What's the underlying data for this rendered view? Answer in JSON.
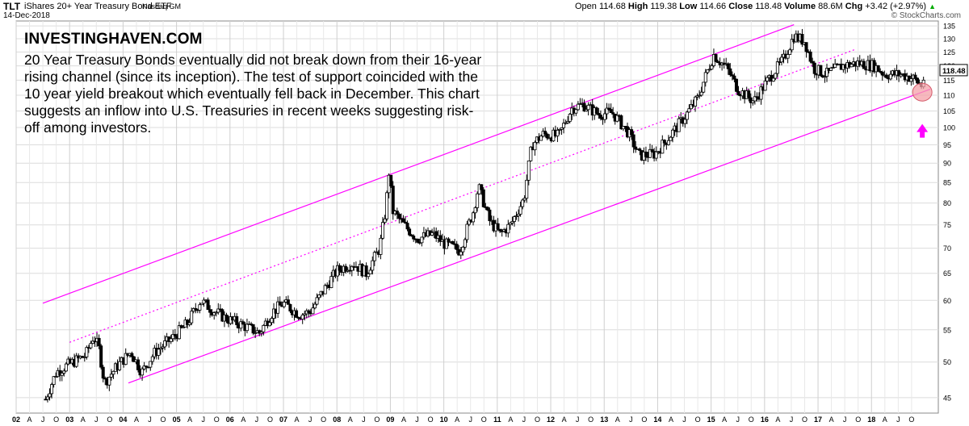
{
  "header": {
    "symbol": "TLT",
    "name": "iShares 20+ Year Treasury Bond ETF",
    "exchange": "Nasdaq GM",
    "date": "14-Dec-2018",
    "open_label": "Open",
    "open": "114.68",
    "high_label": "High",
    "high": "119.38",
    "low_label": "Low",
    "low": "114.66",
    "close_label": "Close",
    "close": "118.48",
    "volume_label": "Volume",
    "volume": "88.6M",
    "chg_label": "Chg",
    "chg": "+3.42 (+2.97%)",
    "chg_arrow": "▲",
    "credit": "© StockCharts.com"
  },
  "annotation": {
    "brand": "INVESTINGHAVEN.COM",
    "text": "20 Year Treasury Bonds eventually did not break down from their 16-year rising channel (since its inception). The test of support coincided with the 10 year yield breakout which eventually fell back in December. This chart suggests an inflow into U.S. Treasuries in recent weeks suggesting risk-off among investors."
  },
  "chart_data": {
    "type": "candlestick",
    "scale": "log",
    "ylim": [
      43,
      137
    ],
    "y_ticks": [
      45,
      50,
      55,
      60,
      65,
      70,
      75,
      80,
      85,
      90,
      95,
      100,
      105,
      110,
      115,
      120,
      125,
      130,
      135
    ],
    "x_axis_labels": [
      "02",
      "A",
      "J",
      "O",
      "03",
      "A",
      "J",
      "O",
      "04",
      "A",
      "J",
      "O",
      "05",
      "A",
      "J",
      "O",
      "06",
      "A",
      "J",
      "O",
      "07",
      "A",
      "J",
      "O",
      "08",
      "A",
      "J",
      "O",
      "09",
      "A",
      "J",
      "O",
      "10",
      "A",
      "J",
      "O",
      "11",
      "A",
      "J",
      "O",
      "12",
      "A",
      "J",
      "O",
      "13",
      "A",
      "J",
      "O",
      "14",
      "A",
      "J",
      "O",
      "15",
      "A",
      "J",
      "O",
      "16",
      "A",
      "J",
      "O",
      "17",
      "A",
      "J",
      "O",
      "18",
      "A",
      "J",
      "O"
    ],
    "last_price_label": "118.48",
    "series_color": "#000000",
    "channel_color": "#ff00ff",
    "highlight_color": "#f4a0a8",
    "arrow_color": "#ff00ff",
    "grid": true,
    "channel_lines": [
      {
        "role": "upper",
        "style": "solid",
        "start": {
          "date": 2002.5,
          "price": 59.5
        },
        "end": {
          "date": 2016.55,
          "price": 135.5
        }
      },
      {
        "role": "middle",
        "style": "dotted",
        "start": {
          "date": 2003.0,
          "price": 53.0
        },
        "end": {
          "date": 2017.7,
          "price": 126
        }
      },
      {
        "role": "lower",
        "style": "solid",
        "start": {
          "date": 2004.1,
          "price": 47.0
        },
        "end": {
          "date": 2019.1,
          "price": 112.0
        }
      }
    ],
    "highlight_point": {
      "date": 2018.95,
      "price": 111
    },
    "arrow_point": {
      "date": 2018.95,
      "price": 105
    },
    "price_path": [
      [
        2002.55,
        44.8
      ],
      [
        2002.75,
        48.5
      ],
      [
        2002.95,
        49.5
      ],
      [
        2003.3,
        51.0
      ],
      [
        2003.45,
        54.0
      ],
      [
        2003.55,
        52.0
      ],
      [
        2003.65,
        47.0
      ],
      [
        2003.9,
        49.5
      ],
      [
        2004.15,
        51.5
      ],
      [
        2004.35,
        48.5
      ],
      [
        2004.6,
        51.5
      ],
      [
        2004.9,
        53.5
      ],
      [
        2005.2,
        56.0
      ],
      [
        2005.45,
        60.0
      ],
      [
        2005.65,
        58.5
      ],
      [
        2005.9,
        57.0
      ],
      [
        2006.3,
        55.5
      ],
      [
        2006.55,
        54.5
      ],
      [
        2006.8,
        58.0
      ],
      [
        2007.0,
        59.5
      ],
      [
        2007.3,
        57.5
      ],
      [
        2007.5,
        58.0
      ],
      [
        2007.7,
        61.0
      ],
      [
        2008.0,
        65.5
      ],
      [
        2008.3,
        67.0
      ],
      [
        2008.55,
        65.0
      ],
      [
        2008.8,
        70.0
      ],
      [
        2008.92,
        79.0
      ],
      [
        2008.97,
        88.0
      ],
      [
        2009.05,
        78.0
      ],
      [
        2009.25,
        75.0
      ],
      [
        2009.5,
        72.0
      ],
      [
        2009.8,
        73.0
      ],
      [
        2010.0,
        71.0
      ],
      [
        2010.3,
        69.5
      ],
      [
        2010.55,
        78.0
      ],
      [
        2010.65,
        84.0
      ],
      [
        2010.85,
        76.0
      ],
      [
        2011.05,
        73.0
      ],
      [
        2011.25,
        75.0
      ],
      [
        2011.5,
        81.0
      ],
      [
        2011.65,
        95.0
      ],
      [
        2011.85,
        98.0
      ],
      [
        2012.15,
        97.5
      ],
      [
        2012.4,
        106.0
      ],
      [
        2012.6,
        107.0
      ],
      [
        2012.9,
        104.0
      ],
      [
        2013.15,
        104.5
      ],
      [
        2013.45,
        98.5
      ],
      [
        2013.65,
        92.0
      ],
      [
        2013.95,
        92.5
      ],
      [
        2014.2,
        97.0
      ],
      [
        2014.5,
        103.0
      ],
      [
        2014.75,
        109.0
      ],
      [
        2015.05,
        124.0
      ],
      [
        2015.3,
        119.0
      ],
      [
        2015.5,
        112.0
      ],
      [
        2015.8,
        108.0
      ],
      [
        2016.1,
        116.0
      ],
      [
        2016.35,
        122.0
      ],
      [
        2016.55,
        131.0
      ],
      [
        2016.75,
        129.0
      ],
      [
        2016.92,
        119.0
      ],
      [
        2017.15,
        117.0
      ],
      [
        2017.45,
        120.0
      ],
      [
        2017.75,
        121.0
      ],
      [
        2018.05,
        120.0
      ],
      [
        2018.25,
        117.0
      ],
      [
        2018.55,
        117.0
      ],
      [
        2018.8,
        115.5
      ],
      [
        2018.93,
        113.0
      ],
      [
        2019.0,
        117.0
      ]
    ]
  }
}
